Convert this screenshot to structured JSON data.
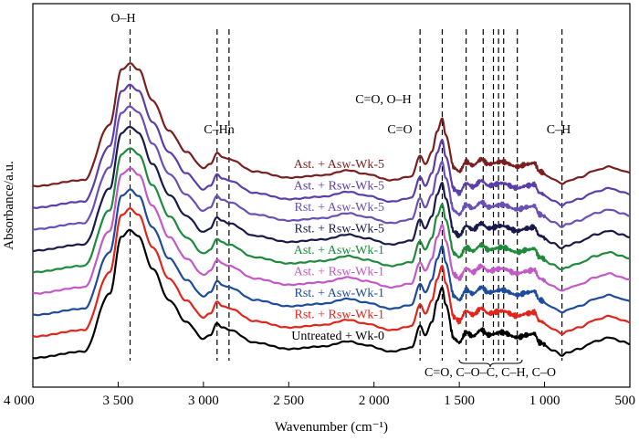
{
  "chart_data": {
    "type": "line",
    "xlabel": "Wavenumber (cm⁻¹)",
    "ylabel": "Absorbance/a.u.",
    "xlim": [
      4000,
      500
    ],
    "x_reversed": true,
    "x_ticks": [
      4000,
      3500,
      3000,
      2500,
      2000,
      1500,
      1000,
      500
    ],
    "x_tick_labels": [
      "4 000",
      "3 500",
      "3 000",
      "2 500",
      "2 000",
      "1 500",
      "1 000",
      "500"
    ],
    "y_ticks_shown": false,
    "grid": false,
    "curve_shape_points": [
      [
        4000,
        0.0
      ],
      [
        3700,
        0.05
      ],
      [
        3550,
        0.5
      ],
      [
        3480,
        0.95
      ],
      [
        3430,
        1.0
      ],
      [
        3380,
        0.95
      ],
      [
        3300,
        0.7
      ],
      [
        3200,
        0.45
      ],
      [
        3100,
        0.28
      ],
      [
        3000,
        0.15
      ],
      [
        2960,
        0.18
      ],
      [
        2920,
        0.27
      ],
      [
        2890,
        0.24
      ],
      [
        2850,
        0.22
      ],
      [
        2700,
        0.12
      ],
      [
        2500,
        0.07
      ],
      [
        2300,
        0.09
      ],
      [
        2150,
        0.13
      ],
      [
        2050,
        0.1
      ],
      [
        1900,
        0.05
      ],
      [
        1780,
        0.08
      ],
      [
        1730,
        0.25
      ],
      [
        1700,
        0.18
      ],
      [
        1660,
        0.28
      ],
      [
        1630,
        0.45
      ],
      [
        1600,
        0.55
      ],
      [
        1580,
        0.42
      ],
      [
        1530,
        0.15
      ],
      [
        1500,
        0.12
      ],
      [
        1460,
        0.2
      ],
      [
        1420,
        0.17
      ],
      [
        1370,
        0.22
      ],
      [
        1330,
        0.18
      ],
      [
        1250,
        0.2
      ],
      [
        1160,
        0.16
      ],
      [
        1100,
        0.18
      ],
      [
        1060,
        0.19
      ],
      [
        1030,
        0.12
      ],
      [
        950,
        0.06
      ],
      [
        898,
        0.02
      ],
      [
        870,
        0.04
      ],
      [
        800,
        0.07
      ],
      [
        700,
        0.13
      ],
      [
        620,
        0.16
      ],
      [
        550,
        0.13
      ],
      [
        500,
        0.11
      ]
    ],
    "series": [
      {
        "name": "Untreated + Wk-0",
        "color": "#000000",
        "offset": 0,
        "amp": 1.0
      },
      {
        "name": "Rst. + Rsw-Wk-1",
        "color": "#e0261c",
        "offset": 1,
        "amp": 1.0
      },
      {
        "name": "Rst. + Asw-Wk-1",
        "color": "#1f4b9c",
        "offset": 2,
        "amp": 0.98
      },
      {
        "name": "Ast. + Rsw-Wk-1",
        "color": "#c25ac5",
        "offset": 3,
        "amp": 0.98
      },
      {
        "name": "Ast. + Asw-Wk-1",
        "color": "#1e8a3c",
        "offset": 4,
        "amp": 0.97
      },
      {
        "name": "Rst. + Rsw-Wk-5",
        "color": "#1a1a4a",
        "offset": 5,
        "amp": 0.97
      },
      {
        "name": "Rst. + Asw-Wk-5",
        "color": "#6a4fb5",
        "offset": 6,
        "amp": 0.96
      },
      {
        "name": "Ast. + Rsw-Wk-5",
        "color": "#5c3ea8",
        "offset": 7,
        "amp": 0.96
      },
      {
        "name": "Ast. + Asw-Wk-5",
        "color": "#7a1f1f",
        "offset": 8,
        "amp": 0.96
      }
    ],
    "annotations": [
      {
        "text": "O–H",
        "x": 3430
      },
      {
        "text": "C–Hn",
        "x": 2900
      },
      {
        "text": "C=O, O–H",
        "x": 1620
      },
      {
        "text": "C=O",
        "x": 1730
      },
      {
        "text": "C–H",
        "x": 898
      },
      {
        "text": "C=O, C–O–C, C–H, C–O",
        "x": 1300
      }
    ],
    "dashed_marker_lines": [
      3430,
      2920,
      2850,
      1730,
      1600,
      1460,
      1360,
      1300,
      1270,
      1240,
      1160,
      898
    ]
  }
}
